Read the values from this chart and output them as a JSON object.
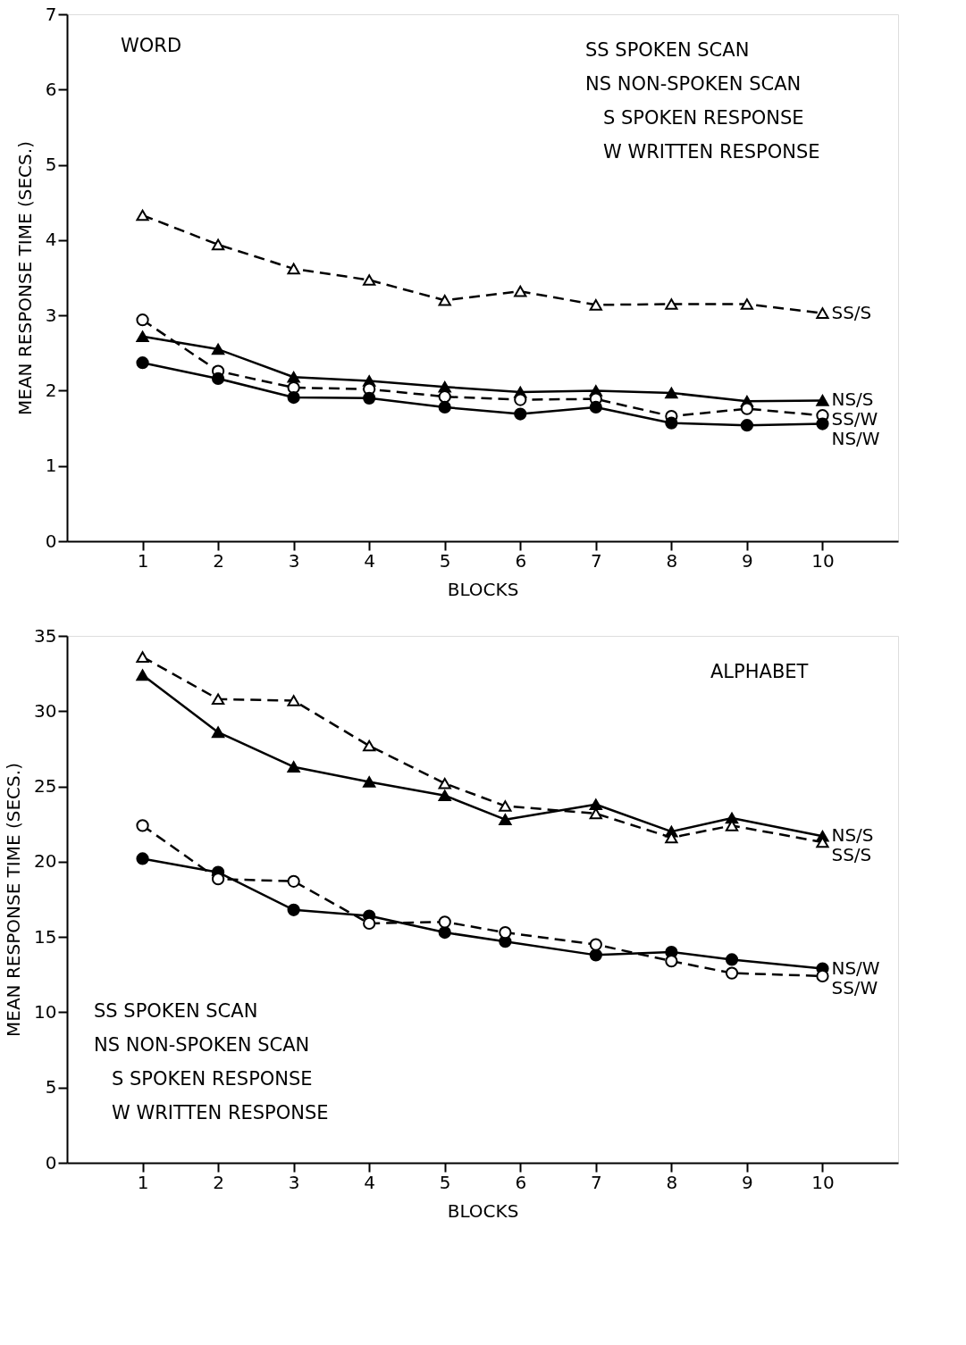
{
  "chart_data": [
    {
      "type": "line",
      "title": "WORD",
      "xlabel": "BLOCKS",
      "ylabel": "MEAN RESPONSE TIME (SECS.)",
      "xlim": [
        0,
        11
      ],
      "xticks": [
        1,
        2,
        3,
        4,
        5,
        6,
        7,
        8,
        9,
        10
      ],
      "ylim": [
        0,
        7
      ],
      "yticks": [
        0,
        1,
        2,
        3,
        4,
        5,
        6,
        7
      ],
      "grid": false,
      "annotations": [
        "SS SPOKEN  SCAN",
        "NS NON-SPOKEN SCAN",
        "S SPOKEN RESPONSE",
        "W WRITTEN RESPONSE"
      ],
      "series": [
        {
          "name": "SS/S",
          "color": "#000000",
          "marker": "triangle",
          "line_style": "dashed",
          "x": [
            1,
            2,
            3,
            4,
            5,
            6,
            7,
            8,
            9,
            10
          ],
          "values": [
            4.33,
            3.94,
            3.62,
            3.47,
            3.2,
            3.32,
            3.14,
            3.15,
            3.15,
            3.03
          ]
        },
        {
          "name": "NS/S",
          "color": "#000000",
          "marker": "triangle",
          "line_style": "solid",
          "x": [
            1,
            2,
            3,
            4,
            5,
            6,
            7,
            8,
            9,
            10
          ],
          "values": [
            2.72,
            2.55,
            2.18,
            2.13,
            2.05,
            1.98,
            2.0,
            1.97,
            1.86,
            1.87
          ]
        },
        {
          "name": "SS/W",
          "color": "#000000",
          "marker": "circle",
          "line_style": "dashed",
          "x": [
            1,
            2,
            3,
            4,
            5,
            6,
            7,
            8,
            9,
            10
          ],
          "values": [
            2.94,
            2.26,
            2.04,
            2.02,
            1.92,
            1.88,
            1.89,
            1.66,
            1.76,
            1.67
          ]
        },
        {
          "name": "NS/W",
          "color": "#000000",
          "marker": "circle",
          "line_style": "solid",
          "x": [
            1,
            2,
            3,
            4,
            5,
            6,
            7,
            8,
            9,
            10
          ],
          "values": [
            2.37,
            2.16,
            1.91,
            1.9,
            1.78,
            1.69,
            1.78,
            1.57,
            1.54,
            1.56
          ]
        }
      ]
    },
    {
      "type": "line",
      "title": "ALPHABET",
      "xlabel": "BLOCKS",
      "ylabel": "MEAN RESPONSE TIME (SECS.)",
      "xlim": [
        0,
        11
      ],
      "xticks": [
        1,
        2,
        3,
        4,
        5,
        6,
        7,
        8,
        9,
        10
      ],
      "ylim": [
        0,
        35
      ],
      "yticks": [
        0,
        5,
        10,
        15,
        20,
        25,
        30,
        35
      ],
      "grid": false,
      "annotations": [
        "SS SPOKEN  SCAN",
        "NS NON-SPOKEN  SCAN",
        "S SPOKEN RESPONSE",
        "W WRITTEN RESPONSE"
      ],
      "series": [
        {
          "name": "NS/S",
          "color": "#000000",
          "marker": "triangle",
          "line_style": "solid",
          "x": [
            1,
            2,
            3,
            4,
            5,
            5.8,
            7,
            8,
            8.8,
            10
          ],
          "values": [
            32.4,
            28.6,
            26.3,
            25.3,
            24.4,
            22.8,
            23.8,
            22.0,
            22.9,
            21.7
          ]
        },
        {
          "name": "SS/S",
          "color": "#000000",
          "marker": "triangle",
          "line_style": "dashed",
          "x": [
            1,
            2,
            3,
            4,
            5,
            5.8,
            7,
            8,
            8.8,
            10
          ],
          "values": [
            33.6,
            30.8,
            30.7,
            27.7,
            25.2,
            23.7,
            23.2,
            21.6,
            22.4,
            21.3
          ]
        },
        {
          "name": "NS/W",
          "color": "#000000",
          "marker": "circle",
          "line_style": "solid",
          "x": [
            1,
            2,
            3,
            4,
            5,
            5.8,
            7,
            8,
            8.8,
            10
          ],
          "values": [
            20.2,
            19.3,
            16.8,
            16.4,
            15.3,
            14.7,
            13.8,
            14.0,
            13.5,
            12.9
          ]
        },
        {
          "name": "SS/W",
          "color": "#000000",
          "marker": "circle",
          "line_style": "dashed",
          "x": [
            1,
            2,
            3,
            4,
            5,
            5.8,
            7,
            8,
            8.8,
            10
          ],
          "values": [
            22.4,
            18.85,
            18.7,
            15.9,
            16.0,
            15.3,
            14.5,
            13.4,
            12.6,
            12.4
          ]
        }
      ]
    }
  ]
}
